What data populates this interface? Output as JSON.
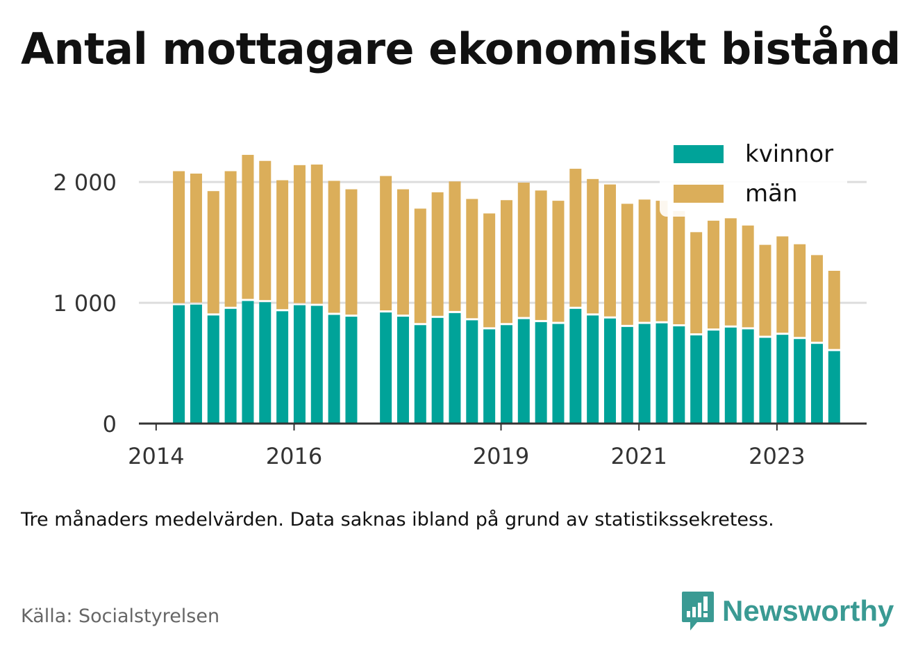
{
  "title": "Antal mottagare ekonomiskt bistånd",
  "subtitle": "Tre månaders medelvärden. Data saknas ibland på grund av statistikssekretess.",
  "source": "Källa: Socialstyrelsen",
  "brand": {
    "name": "Newsworthy",
    "icon": "newsworthy-logo-icon",
    "color": "#3a9a93"
  },
  "colors": {
    "kvinnor": "#00a399",
    "man": "#dbae5a",
    "grid": "#dddddd",
    "axis": "#333333"
  },
  "chart_data": {
    "type": "bar",
    "stacked": true,
    "legend_position": "top-right",
    "grid": true,
    "ylim": [
      0,
      2300
    ],
    "yticks": [
      0,
      1000,
      2000
    ],
    "ytick_labels": [
      "0",
      "1 000",
      "2 000"
    ],
    "xlim": [
      2013.75,
      2024.3
    ],
    "xticks": [
      2014,
      2016,
      2019,
      2021,
      2023
    ],
    "xtick_labels": [
      "2014",
      "2016",
      "2019",
      "2021",
      "2023"
    ],
    "x": [
      2014.33,
      2014.58,
      2014.83,
      2015.08,
      2015.33,
      2015.58,
      2015.83,
      2016.08,
      2016.33,
      2016.58,
      2016.83,
      2017.33,
      2017.58,
      2017.83,
      2018.08,
      2018.33,
      2018.58,
      2018.83,
      2019.08,
      2019.33,
      2019.58,
      2019.83,
      2020.08,
      2020.33,
      2020.58,
      2020.83,
      2021.08,
      2021.33,
      2021.58,
      2021.83,
      2022.08,
      2022.33,
      2022.58,
      2022.83,
      2023.08,
      2023.33,
      2023.58,
      2023.83
    ],
    "series": [
      {
        "name": "kvinnor",
        "color": "#00a399",
        "values": [
          980,
          985,
          895,
          950,
          1015,
          1005,
          930,
          980,
          975,
          900,
          885,
          920,
          885,
          815,
          875,
          915,
          855,
          780,
          815,
          865,
          840,
          825,
          950,
          895,
          870,
          800,
          825,
          830,
          805,
          730,
          770,
          795,
          780,
          710,
          735,
          700,
          660,
          600
        ]
      },
      {
        "name": "män",
        "color": "#dbae5a",
        "values": [
          1110,
          1085,
          1030,
          1140,
          1210,
          1170,
          1085,
          1160,
          1170,
          1110,
          1055,
          1130,
          1055,
          965,
          1040,
          1090,
          1005,
          960,
          1035,
          1130,
          1090,
          1020,
          1160,
          1130,
          1110,
          1020,
          1030,
          1015,
          955,
          855,
          910,
          905,
          860,
          770,
          815,
          785,
          735,
          665
        ]
      }
    ]
  }
}
